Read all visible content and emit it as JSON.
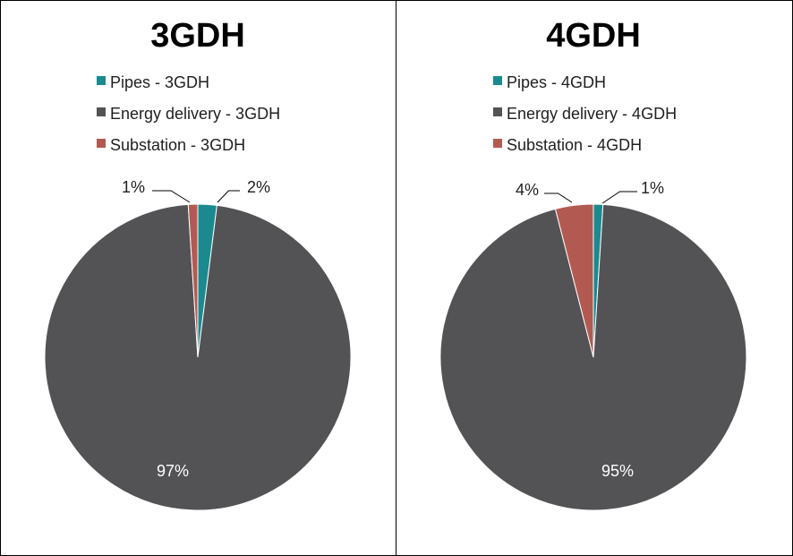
{
  "chart_data": [
    {
      "type": "pie",
      "title": "3GDH",
      "legend_position": "top",
      "slices": [
        {
          "label": "Pipes - 3GDH",
          "value": 2,
          "display": "2%",
          "color": "#1a8a8f"
        },
        {
          "label": "Energy delivery - 3GDH",
          "value": 97,
          "display": "97%",
          "color": "#535356"
        },
        {
          "label": "Substation - 3GDH",
          "value": 1,
          "display": "1%",
          "color": "#b25a52"
        }
      ]
    },
    {
      "type": "pie",
      "title": "4GDH",
      "legend_position": "top",
      "slices": [
        {
          "label": "Pipes - 4GDH",
          "value": 1,
          "display": "1%",
          "color": "#1a8a8f"
        },
        {
          "label": "Energy delivery - 4GDH",
          "value": 95,
          "display": "95%",
          "color": "#535356"
        },
        {
          "label": "Substation - 4GDH",
          "value": 4,
          "display": "4%",
          "color": "#b25a52"
        }
      ]
    }
  ]
}
